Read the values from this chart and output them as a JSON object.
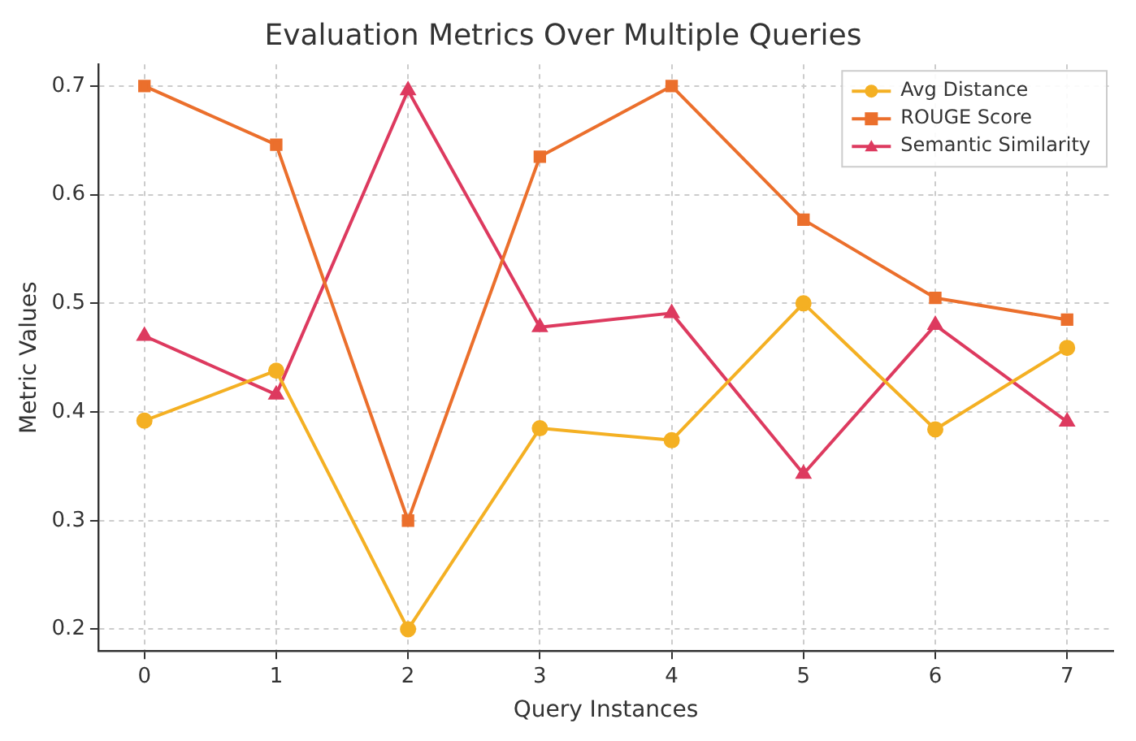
{
  "chart_data": {
    "type": "line",
    "title": "Evaluation Metrics Over Multiple Queries",
    "xlabel": "Query Instances",
    "ylabel": "Metric Values",
    "x": [
      0,
      1,
      2,
      3,
      4,
      5,
      6,
      7
    ],
    "series": [
      {
        "name": "Avg Distance",
        "color": "#f4b023",
        "marker": "circle",
        "values": [
          0.392,
          0.438,
          0.2,
          0.385,
          0.374,
          0.5,
          0.384,
          0.459
        ]
      },
      {
        "name": "ROUGE Score",
        "color": "#eb6f2c",
        "marker": "square",
        "values": [
          0.7,
          0.646,
          0.3,
          0.635,
          0.7,
          0.577,
          0.505,
          0.485
        ]
      },
      {
        "name": "Semantic Similarity",
        "color": "#dd3a5f",
        "marker": "triangle",
        "values": [
          0.47,
          0.416,
          0.696,
          0.478,
          0.491,
          0.343,
          0.48,
          0.391
        ]
      }
    ],
    "xlim": [
      -0.35,
      7.35
    ],
    "xticks": [
      0,
      1,
      2,
      3,
      4,
      5,
      6,
      7
    ],
    "ylim": [
      0.18,
      0.72
    ],
    "yticks": [
      {
        "value": 0.2,
        "label": "0.2"
      },
      {
        "value": 0.3,
        "label": "0.3"
      },
      {
        "value": 0.4,
        "label": "0.4"
      },
      {
        "value": 0.5,
        "label": "0.5"
      },
      {
        "value": 0.6,
        "label": "0.6"
      },
      {
        "value": 0.7,
        "label": "0.7"
      }
    ],
    "grid": true,
    "legend": "top right",
    "line_style": "solid"
  }
}
